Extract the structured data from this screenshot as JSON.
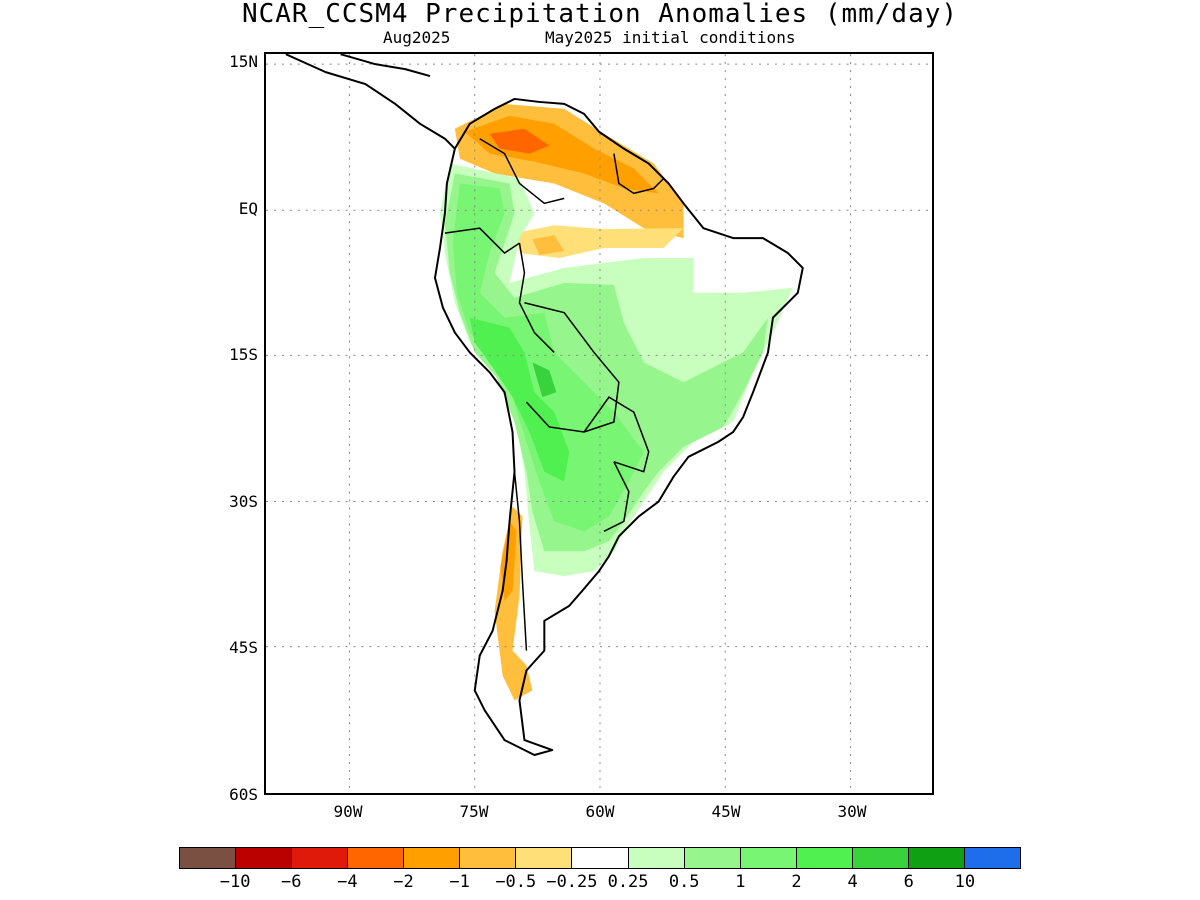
{
  "title": "NCAR_CCSM4 Precipitation Anomalies (mm/day)",
  "subtitle_left": "Aug2025",
  "subtitle_right": "May2025 initial conditions",
  "lat_labels": [
    "15N",
    "EQ",
    "15S",
    "30S",
    "45S",
    "60S"
  ],
  "lon_labels": [
    "90W",
    "75W",
    "60W",
    "45W",
    "30W"
  ],
  "legend": {
    "colors": [
      "#7a5043",
      "#bb0000",
      "#e01a0b",
      "#ff6600",
      "#ff9f00",
      "#ffbe3c",
      "#ffe078",
      "#ffffff",
      "#c8ffbe",
      "#96f58c",
      "#78f573",
      "#50f050",
      "#37d23c",
      "#10a014",
      "#1e6eeb"
    ],
    "labels": [
      "−10",
      "−6",
      "−4",
      "−2",
      "−1",
      "−0.5",
      "−0.25",
      "0.25",
      "0.5",
      "1",
      "2",
      "4",
      "6",
      "10"
    ]
  },
  "map": {
    "projection": "lat-lon",
    "lat_range": [
      -60,
      15
    ],
    "lon_range": [
      -100,
      -20
    ],
    "grid": "dotted",
    "coastline_color": "#000000"
  }
}
